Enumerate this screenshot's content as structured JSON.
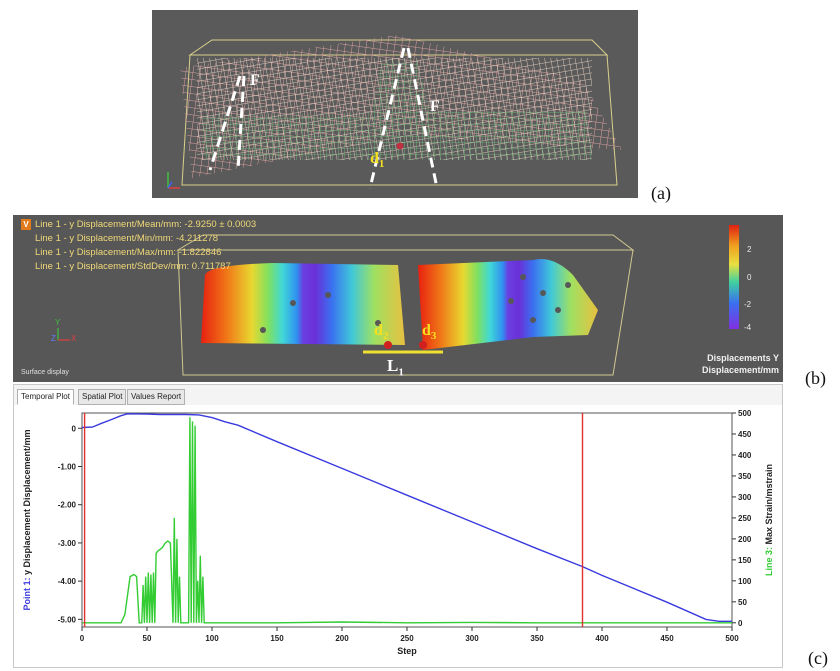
{
  "panel_a": {
    "label": "(a)",
    "force_label_left": "F",
    "force_label_right": "F",
    "point_label_base": "d",
    "point_label_sub": "1"
  },
  "panel_b": {
    "label": "(b)",
    "badge": "V",
    "stats": [
      "Line 1 - y Displacement/Mean/mm: -2.9250 ± 0.0003",
      "Line 1 - y Displacement/Min/mm: -4.211278",
      "Line 1 - y Displacement/Max/mm: -1.822846",
      "Line 1 - y Displacement/StdDev/mm: 0.711787"
    ],
    "colorbar_ticks": [
      "2",
      "0",
      "-2",
      "-4"
    ],
    "colorbar_title_1": "Displacements Y",
    "colorbar_title_2": "Displacement/mm",
    "surface_display": "Surface display",
    "d2_base": "d",
    "d2_sub": "2",
    "d3_base": "d",
    "d3_sub": "3",
    "l1_base": "L",
    "l1_sub": "1",
    "axis_y": "Y",
    "axis_z": "Z",
    "axis_x": "X"
  },
  "panel_c": {
    "label": "(c)",
    "tabs": [
      "Temporal Plot",
      "Spatial Plot",
      "Values Report"
    ]
  },
  "chart_data": {
    "type": "line",
    "xlabel": "Step",
    "x_ticks": [
      "0",
      "50",
      "100",
      "150",
      "200",
      "250",
      "300",
      "350",
      "400",
      "450",
      "500"
    ],
    "xlim": [
      0,
      500
    ],
    "left_axis": {
      "label_prefix": "Point 1: ",
      "label_rest": "y Displacement Displacement/mm",
      "ticks": [
        "0",
        "-1.00",
        "-2.00",
        "-3.00",
        "-4.00",
        "-5.00"
      ],
      "ylim": [
        -5.2,
        0.4
      ],
      "color": "#3a3adf"
    },
    "right_axis": {
      "label_prefix": "Line 3: ",
      "label_rest": "Max Strain/mstrain",
      "ticks": [
        "500",
        "450",
        "400",
        "350",
        "300",
        "250",
        "200",
        "150",
        "100",
        "50",
        "0"
      ],
      "ylim": [
        -10,
        500
      ],
      "color": "#33cc33"
    },
    "markers_x": [
      2,
      385
    ],
    "marker_color": "#e03030",
    "series": [
      {
        "axis": "left",
        "color": "#3a3adf",
        "x": [
          0,
          8,
          15,
          22,
          30,
          35,
          50,
          60,
          70,
          80,
          90,
          100,
          110,
          120,
          150,
          200,
          250,
          300,
          350,
          385,
          400,
          450,
          480,
          490,
          500
        ],
        "y": [
          0.02,
          0.03,
          0.13,
          0.22,
          0.33,
          0.38,
          0.37,
          0.36,
          0.36,
          0.36,
          0.35,
          0.28,
          0.17,
          0.08,
          -0.35,
          -1.05,
          -1.75,
          -2.45,
          -3.15,
          -3.62,
          -3.85,
          -4.55,
          -5.0,
          -5.05,
          -5.05
        ]
      },
      {
        "axis": "right",
        "color": "#33cc33",
        "x": [
          0,
          30,
          33,
          37,
          40,
          42,
          44,
          46,
          47,
          48,
          49,
          50,
          51,
          52,
          53,
          54,
          55,
          56,
          57,
          58,
          60,
          62,
          64,
          66,
          68,
          70,
          71,
          72,
          73,
          74,
          75,
          76,
          77,
          78,
          79,
          80,
          82,
          83,
          84,
          85,
          86,
          87,
          88,
          89,
          90,
          91,
          92,
          93,
          94,
          95,
          100,
          150,
          200,
          250,
          300,
          350,
          400,
          450,
          500
        ],
        "y": [
          0,
          0,
          20,
          110,
          115,
          110,
          0,
          0,
          90,
          0,
          110,
          0,
          120,
          0,
          115,
          0,
          120,
          0,
          165,
          170,
          175,
          180,
          190,
          195,
          190,
          0,
          250,
          0,
          200,
          0,
          110,
          0,
          0,
          0,
          0,
          0,
          0,
          490,
          0,
          480,
          0,
          470,
          0,
          100,
          0,
          160,
          0,
          110,
          0,
          0,
          0,
          0,
          2,
          0,
          1,
          0,
          0,
          0,
          0
        ]
      }
    ]
  }
}
